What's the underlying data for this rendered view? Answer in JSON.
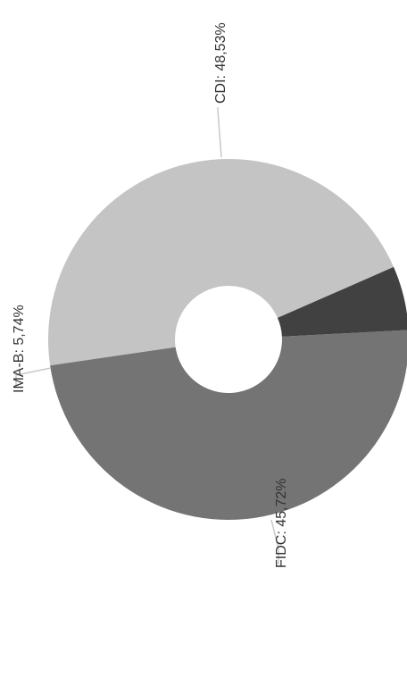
{
  "chart_data": {
    "type": "pie",
    "variant": "donut",
    "title": "",
    "slices": [
      {
        "label": "CDI",
        "value": 48.53,
        "display": "CDI: 48,53%",
        "color": "#747474"
      },
      {
        "label": "FIDC",
        "value": 45.72,
        "display": "FIDC: 45,72%",
        "color": "#c4c4c4"
      },
      {
        "label": "IMA-B",
        "value": 5.74,
        "display": "IMA-B: 5,74%",
        "color": "#414141"
      }
    ],
    "legend": "none",
    "labels_rotated": true
  }
}
